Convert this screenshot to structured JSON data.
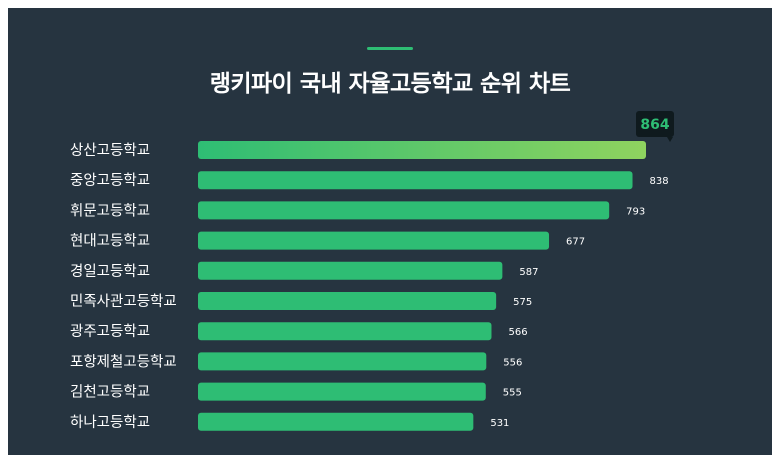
{
  "title": "랭키파이 국내 자율고등학교 순위 차트",
  "colors": {
    "background": "#263440",
    "bar": "#2ebd74",
    "top_bar_start": "#2ebd74",
    "top_bar_end": "#8fd35f",
    "badge_bg": "#0f1a1e",
    "badge_text": "#2ebd74"
  },
  "chart_data": {
    "type": "bar",
    "orientation": "horizontal",
    "title": "랭키파이 국내 자율고등학교 순위 차트",
    "categories": [
      "상산고등학교",
      "중앙고등학교",
      "휘문고등학교",
      "현대고등학교",
      "경일고등학교",
      "민족사관고등학교",
      "광주고등학교",
      "포항제철고등학교",
      "김천고등학교",
      "하나고등학교"
    ],
    "values": [
      864,
      838,
      793,
      677,
      587,
      575,
      566,
      556,
      555,
      531
    ],
    "highlight": {
      "index": 0,
      "label": "864"
    },
    "xlim": [
      0,
      864
    ],
    "grid": false,
    "legend": "none"
  }
}
